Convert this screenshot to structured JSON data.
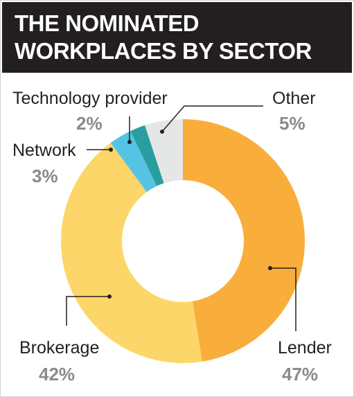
{
  "chart_data": {
    "type": "pie",
    "title_lines": [
      "THE NOMINATED",
      "WORKPLACES BY SECTOR"
    ],
    "slices": [
      {
        "label": "Lender",
        "value": 47,
        "display": "47%",
        "color": "#f9ae3c"
      },
      {
        "label": "Brokerage",
        "value": 42,
        "display": "42%",
        "color": "#fcd668"
      },
      {
        "label": "Network",
        "value": 3,
        "display": "3%",
        "color": "#55c3e2"
      },
      {
        "label": "Technology provider",
        "value": 2,
        "display": "2%",
        "color": "#2a9da0"
      },
      {
        "label": "Other",
        "value": 5,
        "display": "5%",
        "color": "#e5e6e6"
      }
    ],
    "donut": true,
    "legend": "none",
    "grid": false
  }
}
